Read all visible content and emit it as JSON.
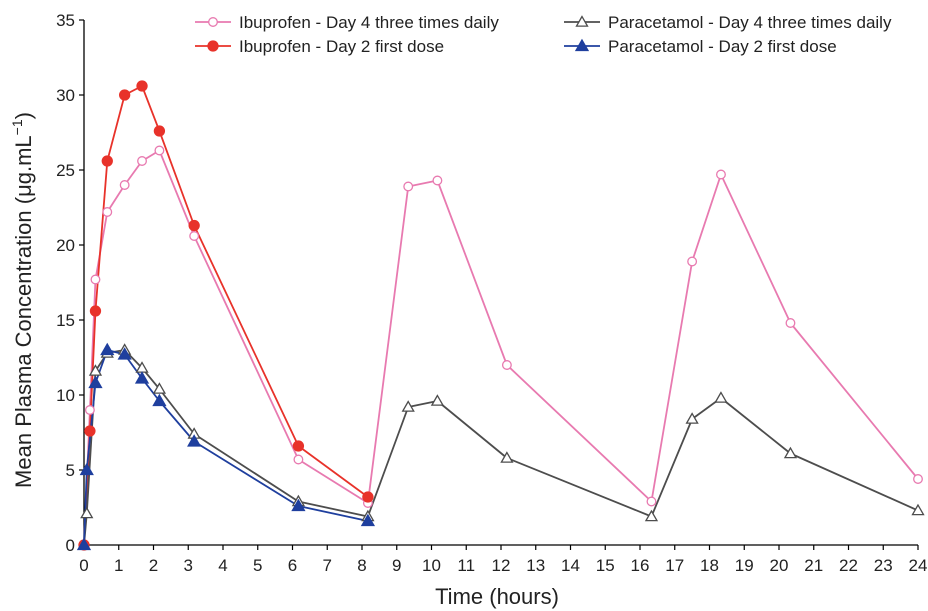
{
  "chart_data": {
    "type": "line",
    "xlabel": "Time (hours)",
    "ylabel": "Mean Plasma Concentration (μg.mL",
    "ylabel_sup": "−1",
    "ylabel_close": ")",
    "xlim": [
      0,
      24
    ],
    "ylim": [
      0,
      35
    ],
    "xticks": [
      0,
      1,
      2,
      3,
      4,
      5,
      6,
      7,
      8,
      9,
      10,
      11,
      12,
      13,
      14,
      15,
      16,
      17,
      18,
      19,
      20,
      21,
      22,
      23,
      24
    ],
    "yticks": [
      0,
      5,
      10,
      15,
      20,
      25,
      30,
      35
    ],
    "grid": false,
    "legend_position": "top",
    "series": [
      {
        "name": "Ibuprofen - Day 4 three times daily",
        "color": "#e87ab0",
        "marker": "open-circle",
        "x": [
          0,
          0.17,
          0.33,
          0.67,
          1.17,
          1.67,
          2.17,
          3.17,
          6.17,
          8.17,
          9.33,
          10.17,
          12.17,
          16.33,
          17.5,
          18.33,
          20.33,
          24
        ],
        "y": [
          0,
          9.0,
          17.7,
          22.2,
          24.0,
          25.6,
          26.3,
          20.6,
          5.7,
          2.8,
          23.9,
          24.3,
          12.0,
          2.9,
          18.9,
          24.7,
          14.8,
          4.4
        ]
      },
      {
        "name": "Ibuprofen - Day 2 first dose",
        "color": "#e8322a",
        "marker": "filled-circle",
        "x": [
          0,
          0.17,
          0.33,
          0.67,
          1.17,
          1.67,
          2.17,
          3.17,
          6.17,
          8.17
        ],
        "y": [
          0,
          7.6,
          15.6,
          25.6,
          30.0,
          30.6,
          27.6,
          21.3,
          6.6,
          3.2
        ]
      },
      {
        "name": "Paracetamol - Day 4 three times daily",
        "color": "#4d4d4d",
        "marker": "open-triangle",
        "x": [
          0,
          0.08,
          0.33,
          0.67,
          1.17,
          1.67,
          2.17,
          3.17,
          6.17,
          8.17,
          9.33,
          10.17,
          12.17,
          16.33,
          17.5,
          18.33,
          20.33,
          24
        ],
        "y": [
          0,
          2.1,
          11.6,
          12.8,
          13.0,
          11.8,
          10.4,
          7.4,
          2.9,
          1.9,
          9.2,
          9.6,
          5.8,
          1.9,
          8.4,
          9.8,
          6.1,
          2.3
        ]
      },
      {
        "name": "Paracetamol - Day 2 first dose",
        "color": "#1f3f9e",
        "marker": "filled-triangle",
        "x": [
          0,
          0.08,
          0.33,
          0.67,
          1.17,
          1.67,
          2.17,
          3.17,
          6.17,
          8.17
        ],
        "y": [
          0,
          5.0,
          10.8,
          13.0,
          12.7,
          11.1,
          9.6,
          6.9,
          2.6,
          1.6
        ]
      }
    ]
  }
}
